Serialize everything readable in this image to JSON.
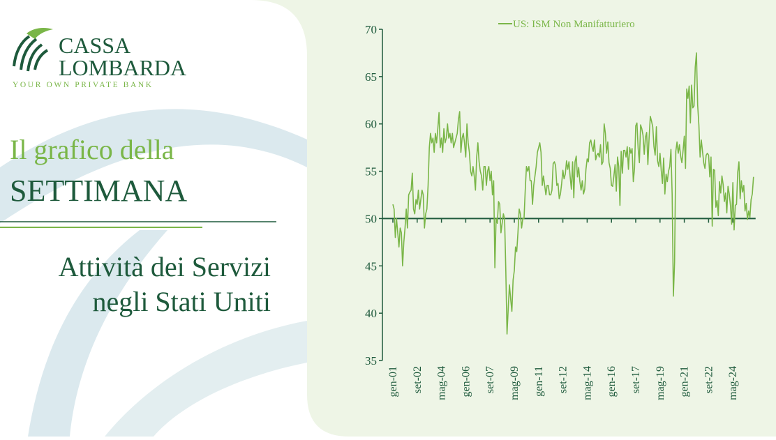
{
  "brand": {
    "name_1": "CASSA",
    "name_2": "LOMBARDA",
    "tagline": "YOUR OWN PRIVATE BANK"
  },
  "heading": {
    "line_1": "Il grafico della",
    "line_2": "SETTIMANA",
    "subtitle_1": "Attività dei Servizi",
    "subtitle_2": "negli Stati Uniti"
  },
  "chart_data": {
    "type": "line",
    "categories": [
      "gen-01",
      null,
      null,
      null,
      null,
      null,
      null,
      null,
      null,
      null,
      null,
      null,
      null,
      null,
      null,
      null,
      null,
      null,
      null,
      null,
      "set-02",
      null,
      null,
      null,
      null,
      null,
      null,
      null,
      null,
      null,
      null,
      null,
      null,
      null,
      null,
      null,
      null,
      null,
      null,
      null,
      "mag-04",
      null,
      null,
      null,
      null,
      null,
      null,
      null,
      null,
      null,
      null,
      null,
      null,
      null,
      null,
      null,
      null,
      null,
      null,
      null,
      "gen-06",
      null,
      null,
      null,
      null,
      null,
      null,
      null,
      null,
      null,
      null,
      null,
      null,
      null,
      null,
      null,
      null,
      null,
      null,
      null,
      "set-07",
      null,
      null,
      null,
      null,
      null,
      null,
      null,
      null,
      null,
      null,
      null,
      null,
      null,
      null,
      null,
      null,
      null,
      null,
      null,
      "mag-09",
      null,
      null,
      null,
      null,
      null,
      null,
      null,
      null,
      null,
      null,
      null,
      null,
      null,
      null,
      null,
      null,
      null,
      null,
      null,
      "gen-11",
      null,
      null,
      null,
      null,
      null,
      null,
      null,
      null,
      null,
      null,
      null,
      null,
      null,
      null,
      null,
      null,
      null,
      null,
      null,
      "set-12",
      null,
      null,
      null,
      null,
      null,
      null,
      null,
      null,
      null,
      null,
      null,
      null,
      null,
      null,
      null,
      null,
      null,
      null,
      null,
      "mag-14",
      null,
      null,
      null,
      null,
      null,
      null,
      null,
      null,
      null,
      null,
      null,
      null,
      null,
      null,
      null,
      null,
      null,
      null,
      null,
      "gen-16",
      null,
      null,
      null,
      null,
      null,
      null,
      null,
      null,
      null,
      null,
      null,
      null,
      null,
      null,
      null,
      null,
      null,
      null,
      null,
      "set-17",
      null,
      null,
      null,
      null,
      null,
      null,
      null,
      null,
      null,
      null,
      null,
      null,
      null,
      null,
      null,
      null,
      null,
      null,
      null,
      "mag-19",
      null,
      null,
      null,
      null,
      null,
      null,
      null,
      null,
      null,
      null,
      null,
      null,
      null,
      null,
      null,
      null,
      null,
      null,
      null,
      "gen-21",
      null,
      null,
      null,
      null,
      null,
      null,
      null,
      null,
      null,
      null,
      null,
      null,
      null,
      null,
      null,
      null,
      null,
      null,
      null,
      "set-22",
      null,
      null,
      null,
      null,
      null,
      null,
      null,
      null,
      null,
      null,
      null,
      null,
      null,
      null,
      null,
      null,
      null,
      null,
      null,
      "mag-24",
      null,
      null,
      null,
      null,
      null,
      null,
      null,
      null,
      null,
      null,
      null,
      null,
      null,
      null,
      null,
      null,
      null
    ],
    "series": [
      {
        "name": "US: ISM Non Manifatturiero",
        "color": "#7ab648",
        "values": [
          51.5,
          51.0,
          48.0,
          50.0,
          48.5,
          47.0,
          49.0,
          48.5,
          45.0,
          47.5,
          49.0,
          51.0,
          49.0,
          52.5,
          52.8,
          53.0,
          54.8,
          51.0,
          50.5,
          52.0,
          51.5,
          53.0,
          51.0,
          52.0,
          53.0,
          52.5,
          49.0,
          50.5,
          51.0,
          53.5,
          57.5,
          59.0,
          58.0,
          58.5,
          57.0,
          59.0,
          58.0,
          59.5,
          61.2,
          57.5,
          58.5,
          57.0,
          59.5,
          58.0,
          58.5,
          60.0,
          58.5,
          59.0,
          58.0,
          59.0,
          57.5,
          58.0,
          58.5,
          59.0,
          60.5,
          61.3,
          57.0,
          58.5,
          59.0,
          58.0,
          56.5,
          60.0,
          58.0,
          57.0,
          55.0,
          54.5,
          55.5,
          54.5,
          53.0,
          56.5,
          58.0,
          56.0,
          55.0,
          54.5,
          53.0,
          55.5,
          55.5,
          53.5,
          55.0,
          55.5,
          54.0,
          55.0,
          52.5,
          54.0,
          44.8,
          50.0,
          49.5,
          51.8,
          51.5,
          48.5,
          49.5,
          50.5,
          50.0,
          44.5,
          37.8,
          40.5,
          43.0,
          41.5,
          40.2,
          43.5,
          44.5,
          47.0,
          46.5,
          48.5,
          51.0,
          50.5,
          49.0,
          50.0,
          50.0,
          53.0,
          55.5,
          55.0,
          55.5,
          54.0,
          54.0,
          51.5,
          53.5,
          54.5,
          55.5,
          57.0,
          57.5,
          58.0,
          57.0,
          53.5,
          54.5,
          53.5,
          52.5,
          53.5,
          53.5,
          52.5,
          52.5,
          53.0,
          55.8,
          56.0,
          55.6,
          53.5,
          53.7,
          52.1,
          52.6,
          53.7,
          55.1,
          54.2,
          54.7,
          56.1,
          55.2,
          56.0,
          54.4,
          53.1,
          56.0,
          52.2,
          56.0,
          56.6,
          54.4,
          55.4,
          53.9,
          53.0,
          54.0,
          52.6,
          53.1,
          55.2,
          56.3,
          56.0,
          58.0,
          58.3,
          57.6,
          57.1,
          58.3,
          56.2,
          56.7,
          56.9,
          56.5,
          57.8,
          55.7,
          56.0,
          60.0,
          59.0,
          56.9,
          58.1,
          55.9,
          55.3,
          53.5,
          53.4,
          54.5,
          55.7,
          52.9,
          56.5,
          55.5,
          51.4,
          57.1,
          54.8,
          57.2,
          57.2,
          56.5,
          57.6,
          55.2,
          57.5,
          56.9,
          57.4,
          53.9,
          55.3,
          59.8,
          60.1,
          57.4,
          55.9,
          59.9,
          59.5,
          58.8,
          56.8,
          58.6,
          59.1,
          55.7,
          58.5,
          60.8,
          60.3,
          59.7,
          57.6,
          56.7,
          59.7,
          56.1,
          55.5,
          56.9,
          55.1,
          53.7,
          56.4,
          52.6,
          54.7,
          53.9,
          55.0,
          55.5,
          57.3,
          52.5,
          41.8,
          45.4,
          57.1,
          58.1,
          56.9,
          57.8,
          56.6,
          55.9,
          57.2,
          58.7,
          55.3,
          63.7,
          62.7,
          64.0,
          60.1,
          64.1,
          61.7,
          61.9,
          66.0,
          67.5,
          62.0,
          59.9,
          56.5,
          58.3,
          57.1,
          55.9,
          55.3,
          56.7,
          56.9,
          56.7,
          54.4,
          56.5,
          49.2,
          55.2,
          55.1,
          51.2,
          51.9,
          50.3,
          53.9,
          52.7,
          54.5,
          53.6,
          51.8,
          52.7,
          50.6,
          53.4,
          52.6,
          51.4,
          49.4,
          53.8,
          48.8,
          51.4,
          51.5,
          54.9,
          56.0,
          52.1,
          54.0,
          52.8,
          53.5,
          50.8,
          51.6,
          49.9,
          50.8,
          50.1,
          52.0,
          52.6,
          54.4
        ]
      }
    ],
    "ylim": [
      35,
      70
    ],
    "yticks": [
      35,
      40,
      45,
      50,
      55,
      60,
      65,
      70
    ],
    "baseline": 50
  }
}
